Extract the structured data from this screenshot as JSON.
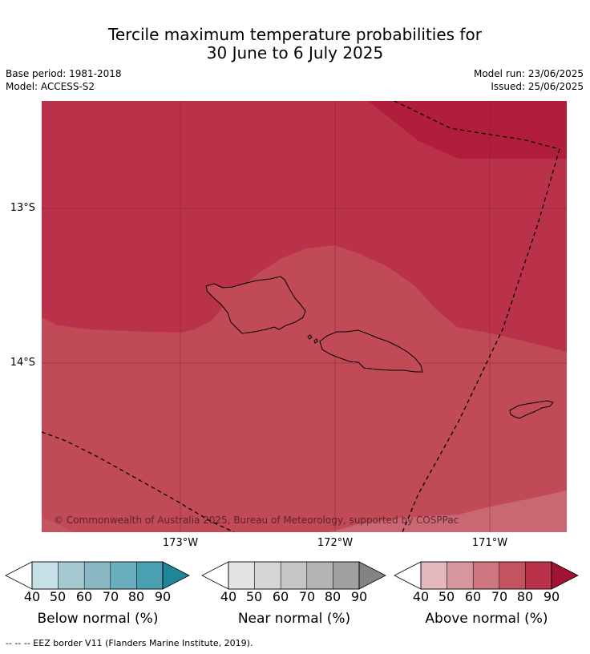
{
  "header": {
    "title_line1": "Tercile maximum temperature probabilities for",
    "title_line2": "30 June to 6 July 2025",
    "base_period": "Base period: 1981-2018",
    "model": "Model: ACCESS-S2",
    "model_run": "Model run: 23/06/2025",
    "issued": "Issued: 25/06/2025"
  },
  "map": {
    "lat_labels": [
      "13°S",
      "14°S"
    ],
    "lon_labels": [
      "173°W",
      "172°W",
      "171°W"
    ],
    "copyright": "© Commonwealth of Australia 2025, Bureau of Meteorology, supported by COSPPac",
    "colors": {
      "above_90": "#b01e3c",
      "above_80": "#b93249",
      "above_70": "#c14a57",
      "above_60": "#c96873"
    }
  },
  "colorbars": [
    {
      "title": "Below normal (%)",
      "ticks": [
        "40",
        "50",
        "60",
        "70",
        "80",
        "90"
      ],
      "colors": [
        "#c6e0e8",
        "#a6c8d0",
        "#89b7c3",
        "#6aaebd",
        "#4a9fb1",
        "#2b8ea3"
      ]
    },
    {
      "title": "Near normal (%)",
      "ticks": [
        "40",
        "50",
        "60",
        "70",
        "80",
        "90"
      ],
      "colors": [
        "#e3e3e3",
        "#d6d6d6",
        "#c6c6c6",
        "#b4b4b4",
        "#a0a0a0",
        "#8a8a8a"
      ]
    },
    {
      "title": "Above normal (%)",
      "ticks": [
        "40",
        "50",
        "60",
        "70",
        "80",
        "90"
      ],
      "colors": [
        "#e4b8bd",
        "#d6969e",
        "#cd767f",
        "#c3535f",
        "#b9324a",
        "#ab1a37"
      ]
    }
  ],
  "footer": {
    "eez_note": "--  --  -- EEZ border V11 (Flanders Marine Institute, 2019)."
  }
}
